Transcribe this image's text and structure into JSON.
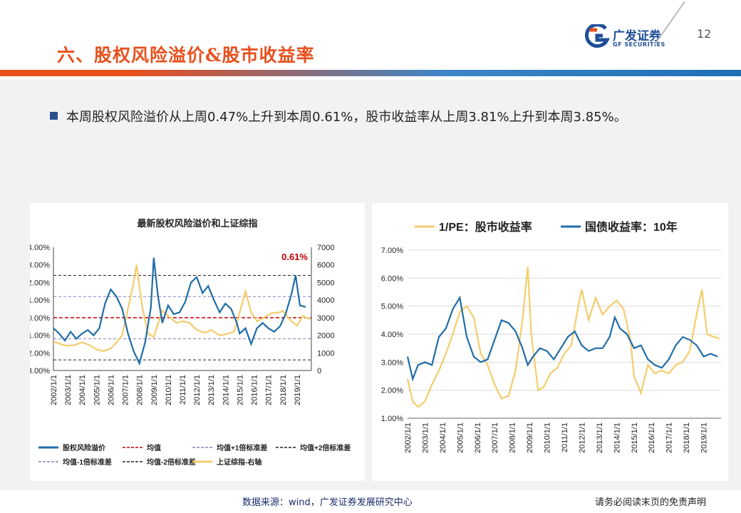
{
  "page": {
    "title": "六、股权风险溢价&股市收益率",
    "page_number": "12",
    "logo_name": "广发证券",
    "logo_sub": "GF SECURITIES",
    "bullet": "本周股权风险溢价从上周0.47%上升到本周0.61%，股市收益率从上周3.81%上升到本周3.85%。",
    "source": "数据来源：wind，广发证券发展研究中心",
    "disclaimer": "请务必阅读末页的免责声明"
  },
  "colors": {
    "blue": "#1f6da8",
    "gold": "#f5cc6c",
    "red": "#c00000",
    "accent": "#e8501e"
  },
  "chart_data": [
    {
      "type": "line",
      "title": "最新股权风险溢价和上证综指",
      "annotation": "0.61%",
      "x_ticks": [
        "2002/1/1",
        "2003/1/1",
        "2004/1/1",
        "2005/1/1",
        "2006/1/1",
        "2007/1/1",
        "2008/1/1",
        "2009/1/1",
        "2010/1/1",
        "2011/1/1",
        "2012/1/1",
        "2013/1/1",
        "2014/1/1",
        "2015/1/1",
        "2016/1/1",
        "2017/1/1",
        "2018/1/1",
        "2019/1/1"
      ],
      "y_left_ticks": [
        "-3.00%",
        "-2.00%",
        "-1.00%",
        "0.00%",
        "1.00%",
        "2.00%",
        "3.00%",
        "4.00%"
      ],
      "y_right_ticks": [
        "0",
        "1000",
        "2000",
        "3000",
        "4000",
        "5000",
        "6000",
        "7000"
      ],
      "ylim_left": [
        -3,
        4
      ],
      "ylim_right": [
        0,
        7000
      ],
      "xlim": [
        2002.0,
        2020.0
      ],
      "reference_lines": {
        "mean": 0.0,
        "plus1sd": 1.2,
        "plus2sd": 2.4,
        "minus1sd": -1.2,
        "minus2sd": -2.4
      },
      "series": [
        {
          "name": "股权风险溢价",
          "axis": "left",
          "x": [
            2002.0,
            2002.4,
            2002.8,
            2003.2,
            2003.6,
            2004.0,
            2004.4,
            2004.8,
            2005.2,
            2005.6,
            2006.0,
            2006.4,
            2006.8,
            2007.2,
            2007.6,
            2008.0,
            2008.4,
            2008.8,
            2009.0,
            2009.3,
            2009.6,
            2010.0,
            2010.4,
            2010.8,
            2011.2,
            2011.6,
            2012.0,
            2012.4,
            2012.8,
            2013.2,
            2013.6,
            2014.0,
            2014.4,
            2014.8,
            2015.0,
            2015.4,
            2015.8,
            2016.2,
            2016.6,
            2017.0,
            2017.4,
            2017.8,
            2018.2,
            2018.6,
            2018.9,
            2019.2,
            2019.6
          ],
          "y": [
            -0.6,
            -0.9,
            -1.3,
            -0.8,
            -1.2,
            -0.9,
            -0.7,
            -1.0,
            -0.6,
            0.8,
            1.6,
            1.2,
            0.5,
            -0.9,
            -1.9,
            -2.6,
            -1.4,
            0.6,
            3.4,
            1.2,
            -0.3,
            0.7,
            0.2,
            0.3,
            0.9,
            2.0,
            2.3,
            1.4,
            1.8,
            1.0,
            0.3,
            0.8,
            0.5,
            -0.3,
            -0.9,
            -0.6,
            -1.5,
            -0.6,
            -0.3,
            -0.6,
            -0.8,
            -0.5,
            0.2,
            1.3,
            2.4,
            0.7,
            0.61
          ]
        },
        {
          "name": "上证综指-右轴",
          "axis": "right",
          "x": [
            2002.0,
            2002.5,
            2003.0,
            2003.5,
            2004.0,
            2004.5,
            2005.0,
            2005.5,
            2006.0,
            2006.4,
            2006.8,
            2007.2,
            2007.6,
            2007.8,
            2008.2,
            2008.6,
            2009.0,
            2009.6,
            2010.0,
            2010.6,
            2011.0,
            2011.5,
            2012.0,
            2012.6,
            2013.0,
            2013.6,
            2014.0,
            2014.6,
            2015.0,
            2015.4,
            2015.8,
            2016.2,
            2016.8,
            2017.2,
            2017.8,
            2018.0,
            2018.6,
            2019.0,
            2019.4,
            2019.9
          ],
          "y": [
            1650,
            1500,
            1400,
            1450,
            1600,
            1450,
            1200,
            1100,
            1250,
            1600,
            2000,
            3500,
            5000,
            6000,
            3600,
            2100,
            1900,
            3400,
            3100,
            2700,
            2800,
            2700,
            2300,
            2150,
            2300,
            2000,
            2050,
            2200,
            3300,
            4500,
            3300,
            2800,
            3050,
            3250,
            3300,
            3400,
            2800,
            2550,
            3100,
            2900
          ]
        }
      ]
    },
    {
      "type": "line",
      "title": "",
      "x_ticks": [
        "2002/1/1",
        "2003/1/1",
        "2004/1/1",
        "2005/1/1",
        "2006/1/1",
        "2007/1/1",
        "2008/1/1",
        "2009/1/1",
        "2010/1/1",
        "2011/1/1",
        "2012/1/1",
        "2013/1/1",
        "2014/1/1",
        "2015/1/1",
        "2016/1/1",
        "2017/1/1",
        "2018/1/1",
        "2019/1/1"
      ],
      "y_ticks": [
        "1.00%",
        "2.00%",
        "3.00%",
        "4.00%",
        "5.00%",
        "6.00%",
        "7.00%"
      ],
      "ylim": [
        1,
        7
      ],
      "xlim": [
        2002.0,
        2020.0
      ],
      "series": [
        {
          "name": "1/PE：股市收益率",
          "x": [
            2002.0,
            2002.3,
            2002.6,
            2003.0,
            2003.4,
            2003.8,
            2004.2,
            2004.6,
            2005.0,
            2005.4,
            2005.8,
            2006.2,
            2006.6,
            2007.0,
            2007.4,
            2007.8,
            2008.2,
            2008.6,
            2008.9,
            2009.1,
            2009.5,
            2009.8,
            2010.2,
            2010.6,
            2011.0,
            2011.4,
            2011.8,
            2012.0,
            2012.4,
            2012.8,
            2013.2,
            2013.6,
            2014.0,
            2014.4,
            2014.8,
            2015.0,
            2015.4,
            2015.8,
            2016.2,
            2016.6,
            2017.0,
            2017.4,
            2017.8,
            2018.2,
            2018.6,
            2018.9,
            2019.2,
            2019.6,
            2019.9
          ],
          "y": [
            2.4,
            1.6,
            1.4,
            1.6,
            2.2,
            2.7,
            3.3,
            4.0,
            4.8,
            5.0,
            4.6,
            3.3,
            2.9,
            2.2,
            1.7,
            1.8,
            2.7,
            4.5,
            6.4,
            4.0,
            2.0,
            2.1,
            2.6,
            2.8,
            3.3,
            3.6,
            5.0,
            5.6,
            4.5,
            5.3,
            4.7,
            5.0,
            5.2,
            4.9,
            3.8,
            2.5,
            1.9,
            2.9,
            2.6,
            2.7,
            2.6,
            2.9,
            3.0,
            3.4,
            4.7,
            5.6,
            4.0,
            3.9,
            3.85
          ]
        },
        {
          "name": "国债收益率：10年",
          "x": [
            2002.0,
            2002.3,
            2002.6,
            2003.0,
            2003.4,
            2003.8,
            2004.2,
            2004.6,
            2005.0,
            2005.4,
            2005.8,
            2006.2,
            2006.6,
            2007.0,
            2007.4,
            2007.8,
            2008.2,
            2008.6,
            2008.9,
            2009.2,
            2009.6,
            2010.0,
            2010.4,
            2010.8,
            2011.2,
            2011.6,
            2012.0,
            2012.4,
            2012.8,
            2013.2,
            2013.6,
            2013.9,
            2014.2,
            2014.6,
            2015.0,
            2015.4,
            2015.8,
            2016.2,
            2016.6,
            2017.0,
            2017.4,
            2017.8,
            2018.2,
            2018.6,
            2019.0,
            2019.4,
            2019.8
          ],
          "y": [
            3.2,
            2.4,
            2.9,
            3.0,
            2.9,
            3.9,
            4.2,
            4.9,
            5.3,
            3.9,
            3.2,
            3.0,
            3.1,
            3.8,
            4.5,
            4.4,
            4.1,
            3.5,
            2.9,
            3.2,
            3.5,
            3.4,
            3.1,
            3.5,
            3.9,
            4.1,
            3.6,
            3.4,
            3.5,
            3.5,
            3.9,
            4.6,
            4.2,
            4.0,
            3.5,
            3.6,
            3.1,
            2.9,
            2.8,
            3.1,
            3.6,
            3.9,
            3.8,
            3.6,
            3.2,
            3.3,
            3.2
          ]
        }
      ]
    }
  ]
}
